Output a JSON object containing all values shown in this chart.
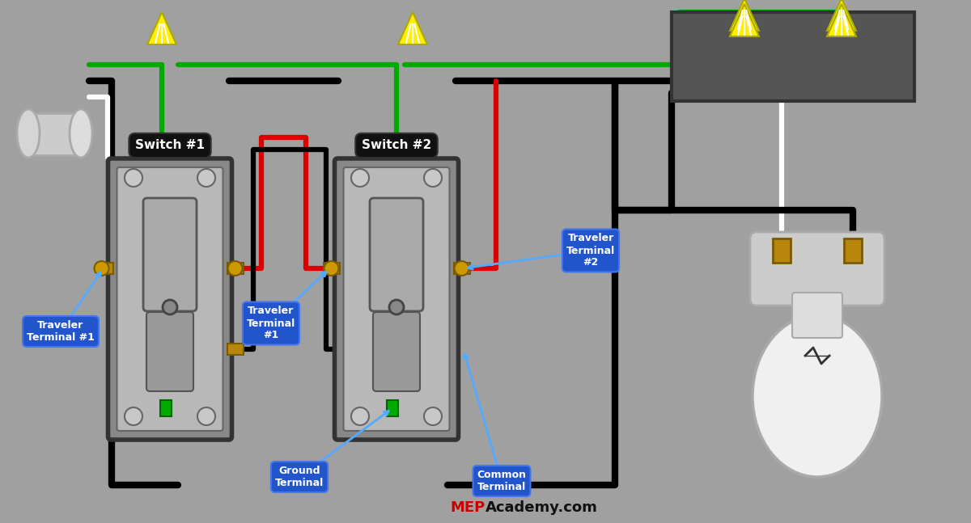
{
  "bg_color": "#a0a0a0",
  "title_text": "MEPAcademy.com",
  "wire_colors": {
    "black": "#000000",
    "white": "#ffffff",
    "green": "#00aa00",
    "red": "#dd0000"
  },
  "labels": {
    "switch1": "Switch #1",
    "switch2": "Switch #2",
    "traveler1_label": "Traveler\nTerminal #1",
    "traveler1_sw1": "Traveler\nTerminal\n#1",
    "traveler2": "Traveler\nTerminal\n#2",
    "ground": "Ground\nTerminal",
    "common": "Common\nTerminal"
  },
  "label_bg_color": "#2255cc",
  "label_text_color": "#ffffff",
  "switch_label_bg": "#111111",
  "switch_label_text": "#ffffff"
}
